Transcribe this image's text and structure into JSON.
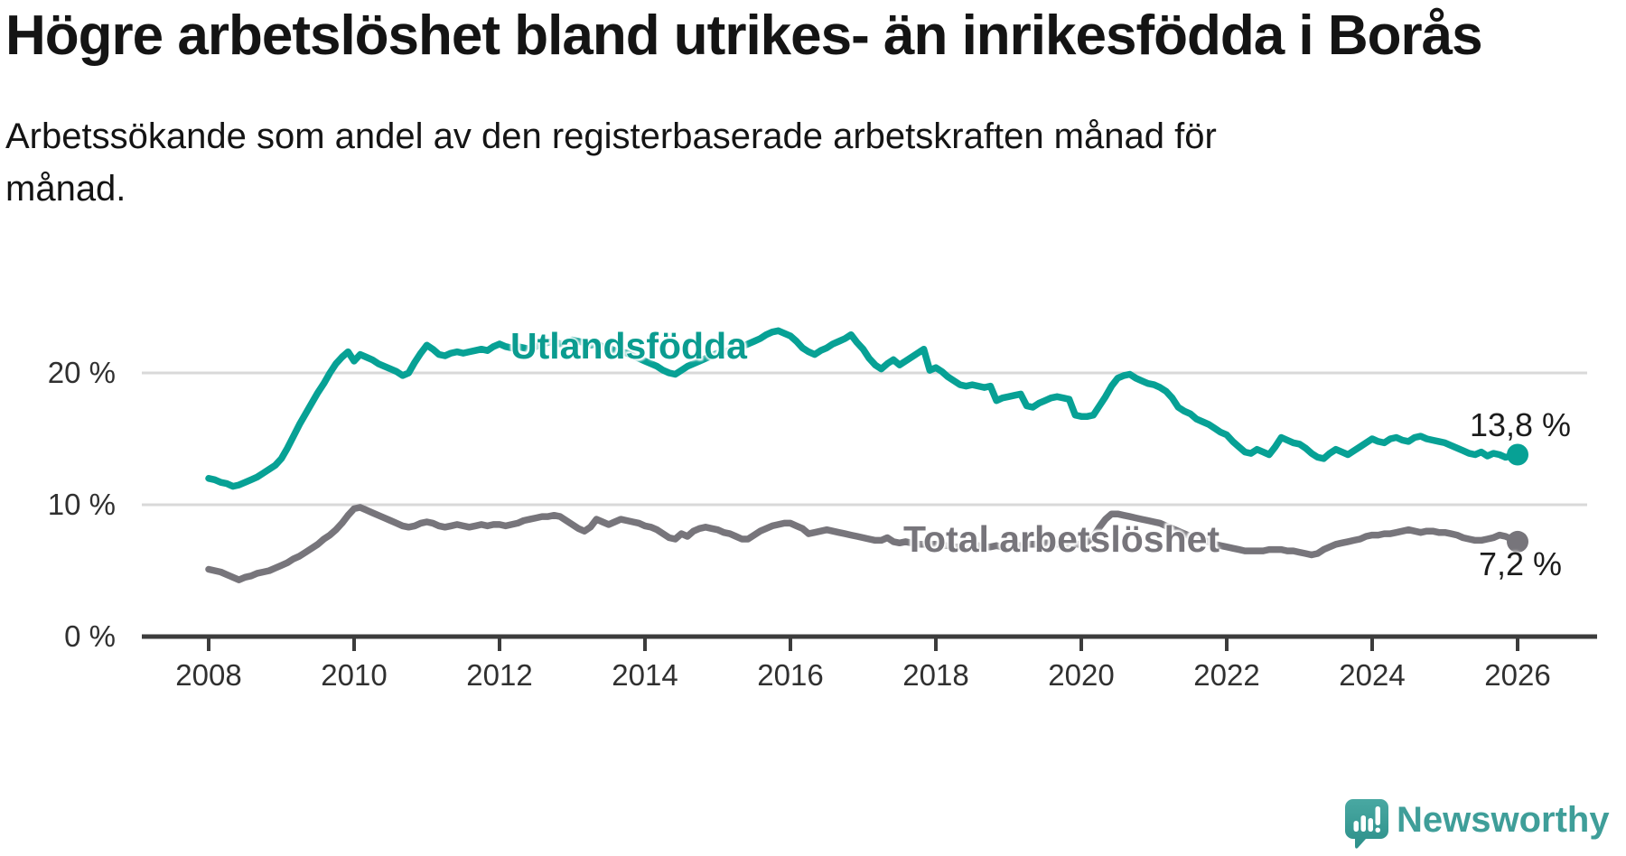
{
  "header": {
    "title": "Högre arbetslöshet bland utrikes- än inrikesfödda i Borås",
    "subtitle_lines": [
      "Arbetssökande som andel av den registerbaserade arbetskraften månad för",
      "månad."
    ]
  },
  "chart_data": {
    "type": "line",
    "title": "Högre arbetslöshet bland utrikes- än inrikesfödda i Borås",
    "subtitle": "Arbetssökande som andel av den registerbaserade arbetskraften månad för månad.",
    "grid": "horizontal-only",
    "x_axis": {
      "range": [
        2007.1,
        2027.1
      ],
      "ticks": [
        2008,
        2010,
        2012,
        2014,
        2016,
        2018,
        2020,
        2022,
        2024,
        2026
      ],
      "tick_labels": [
        "2008",
        "2010",
        "2012",
        "2014",
        "2016",
        "2018",
        "2020",
        "2022",
        "2024",
        "2026"
      ]
    },
    "y_axis": {
      "range": [
        0,
        24
      ],
      "unit": "%",
      "ticks": [
        {
          "value": 0,
          "label": "0 %"
        },
        {
          "value": 10,
          "label": "10 %"
        },
        {
          "value": 20,
          "label": "20 %"
        }
      ]
    },
    "series": [
      {
        "name": "Utlandsfödda",
        "color": "#07a195",
        "end_value": 13.8,
        "end_label": "13,8 %",
        "start_year": 2008,
        "step_months": 1,
        "values": [
          12.0,
          11.9,
          11.7,
          11.6,
          11.4,
          11.5,
          11.7,
          11.9,
          12.1,
          12.4,
          12.7,
          13.0,
          13.5,
          14.3,
          15.2,
          16.1,
          16.9,
          17.7,
          18.5,
          19.2,
          20.0,
          20.7,
          21.2,
          21.6,
          20.9,
          21.4,
          21.2,
          21.0,
          20.7,
          20.5,
          20.3,
          20.1,
          19.8,
          20.0,
          20.8,
          21.5,
          22.1,
          21.8,
          21.4,
          21.3,
          21.5,
          21.6,
          21.5,
          21.6,
          21.7,
          21.8,
          21.7,
          22.0,
          22.2,
          22.0,
          21.9,
          22.0,
          21.9,
          21.8,
          22.0,
          22.2,
          22.3,
          22.4,
          22.2,
          22.3,
          22.5,
          22.4,
          22.3,
          22.1,
          22.2,
          22.0,
          21.9,
          21.7,
          21.6,
          21.5,
          21.3,
          21.1,
          20.9,
          20.7,
          20.5,
          20.2,
          20.0,
          19.9,
          20.2,
          20.5,
          20.7,
          20.9,
          21.1,
          21.3,
          21.5,
          21.6,
          21.7,
          21.9,
          22.0,
          22.2,
          22.4,
          22.6,
          22.9,
          23.1,
          23.2,
          23.0,
          22.8,
          22.4,
          21.9,
          21.6,
          21.4,
          21.7,
          21.9,
          22.2,
          22.4,
          22.6,
          22.9,
          22.3,
          21.8,
          21.1,
          20.6,
          20.3,
          20.7,
          21.0,
          20.6,
          20.9,
          21.2,
          21.5,
          21.8,
          20.2,
          20.4,
          20.1,
          19.7,
          19.4,
          19.1,
          19.0,
          19.1,
          19.0,
          18.9,
          19.0,
          17.9,
          18.1,
          18.2,
          18.3,
          18.4,
          17.5,
          17.4,
          17.7,
          17.9,
          18.1,
          18.2,
          18.1,
          18.0,
          16.8,
          16.7,
          16.7,
          16.8,
          17.5,
          18.2,
          19.0,
          19.6,
          19.8,
          19.9,
          19.6,
          19.4,
          19.2,
          19.1,
          18.9,
          18.6,
          18.1,
          17.4,
          17.1,
          16.9,
          16.5,
          16.3,
          16.1,
          15.8,
          15.5,
          15.3,
          14.8,
          14.4,
          14.0,
          13.9,
          14.2,
          14.0,
          13.8,
          14.4,
          15.1,
          14.9,
          14.7,
          14.6,
          14.3,
          13.9,
          13.6,
          13.5,
          13.9,
          14.2,
          14.0,
          13.8,
          14.1,
          14.4,
          14.7,
          15.0,
          14.8,
          14.7,
          15.0,
          15.1,
          14.9,
          14.8,
          15.1,
          15.2,
          15.0,
          14.9,
          14.8,
          14.7,
          14.5,
          14.3,
          14.1,
          13.9,
          13.8,
          14.0,
          13.7,
          13.9,
          13.8,
          13.6,
          13.7,
          13.8
        ]
      },
      {
        "name": "Total arbetslöshet",
        "color": "#77757b",
        "end_value": 7.2,
        "end_label": "7,2 %",
        "start_year": 2008,
        "step_months": 1,
        "values": [
          5.1,
          5.0,
          4.9,
          4.7,
          4.5,
          4.3,
          4.5,
          4.6,
          4.8,
          4.9,
          5.0,
          5.2,
          5.4,
          5.6,
          5.9,
          6.1,
          6.4,
          6.7,
          7.0,
          7.4,
          7.7,
          8.1,
          8.6,
          9.2,
          9.7,
          9.8,
          9.6,
          9.4,
          9.2,
          9.0,
          8.8,
          8.6,
          8.4,
          8.3,
          8.4,
          8.6,
          8.7,
          8.6,
          8.4,
          8.3,
          8.4,
          8.5,
          8.4,
          8.3,
          8.4,
          8.5,
          8.4,
          8.5,
          8.5,
          8.4,
          8.5,
          8.6,
          8.8,
          8.9,
          9.0,
          9.1,
          9.1,
          9.2,
          9.1,
          8.8,
          8.5,
          8.2,
          8.0,
          8.3,
          8.9,
          8.7,
          8.5,
          8.7,
          8.9,
          8.8,
          8.7,
          8.6,
          8.4,
          8.3,
          8.1,
          7.8,
          7.5,
          7.4,
          7.8,
          7.6,
          8.0,
          8.2,
          8.3,
          8.2,
          8.1,
          7.9,
          7.8,
          7.6,
          7.4,
          7.4,
          7.7,
          8.0,
          8.2,
          8.4,
          8.5,
          8.6,
          8.6,
          8.4,
          8.2,
          7.8,
          7.9,
          8.0,
          8.1,
          8.0,
          7.9,
          7.8,
          7.7,
          7.6,
          7.5,
          7.4,
          7.3,
          7.3,
          7.5,
          7.2,
          7.1,
          7.2,
          7.1,
          7.0,
          7.0,
          7.0,
          7.0,
          6.9,
          6.9,
          6.8,
          6.8,
          6.8,
          6.8,
          6.9,
          6.8,
          6.8,
          6.9,
          6.8,
          6.8,
          6.9,
          6.9,
          7.0,
          7.0,
          7.0,
          7.1,
          7.1,
          7.0,
          7.0,
          7.0,
          7.0,
          7.0,
          7.2,
          7.6,
          8.3,
          8.9,
          9.3,
          9.3,
          9.2,
          9.1,
          9.0,
          8.9,
          8.8,
          8.7,
          8.6,
          8.4,
          8.2,
          8.0,
          7.8,
          7.6,
          7.4,
          7.3,
          7.2,
          7.0,
          6.9,
          6.8,
          6.7,
          6.6,
          6.5,
          6.5,
          6.5,
          6.5,
          6.6,
          6.6,
          6.6,
          6.5,
          6.5,
          6.4,
          6.3,
          6.2,
          6.3,
          6.6,
          6.8,
          7.0,
          7.1,
          7.2,
          7.3,
          7.4,
          7.6,
          7.7,
          7.7,
          7.8,
          7.8,
          7.9,
          8.0,
          8.1,
          8.0,
          7.9,
          8.0,
          8.0,
          7.9,
          7.9,
          7.8,
          7.7,
          7.5,
          7.4,
          7.3,
          7.3,
          7.4,
          7.5,
          7.7,
          7.6,
          7.4,
          7.2
        ]
      }
    ],
    "legend_position": "labels-on-lines"
  },
  "colors": {
    "background": "#ffffff",
    "series_foreign_born": "#07a195",
    "series_total": "#77757b",
    "gridline": "#d9d9d9",
    "axis": "#3c3c3c",
    "text": "#141414",
    "brand_teal": "#3f9e99"
  },
  "footer": {
    "brand": "Newsworthy",
    "logo_icon": "speech-bubble-bar-chart"
  }
}
